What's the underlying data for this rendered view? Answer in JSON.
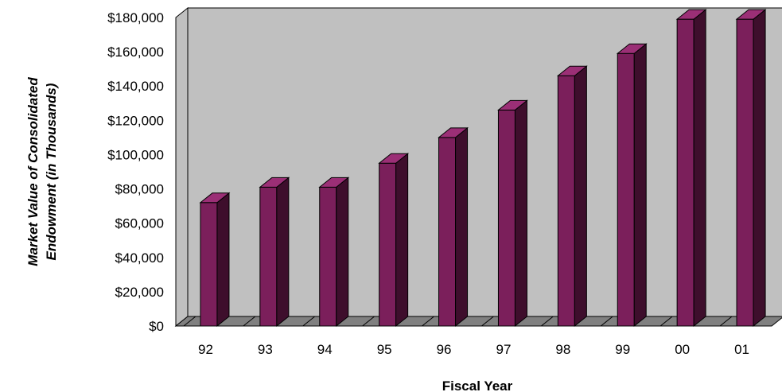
{
  "chart_data": {
    "type": "bar",
    "title": "",
    "xlabel": "Fiscal Year",
    "ylabel_lines": [
      "Market Value of Consolidated",
      "Endowment   (in Thousands)"
    ],
    "categories": [
      "92",
      "93",
      "94",
      "95",
      "96",
      "97",
      "98",
      "99",
      "00",
      "01"
    ],
    "values": [
      72000,
      81000,
      81000,
      95000,
      110000,
      126000,
      146000,
      159000,
      179000,
      179000
    ],
    "ylim": [
      0,
      180000
    ],
    "yticks": [
      "$0",
      "$20,000",
      "$40,000",
      "$60,000",
      "$80,000",
      "$100,000",
      "$120,000",
      "$140,000",
      "$160,000",
      "$180,000"
    ],
    "grid": false,
    "legend": "none",
    "colors": {
      "bar_front": "#7b1f5b",
      "bar_side": "#3e0e2c",
      "bar_top": "#9b2f76",
      "plot_back": "#c0c0c0",
      "floor": "#808080"
    }
  }
}
